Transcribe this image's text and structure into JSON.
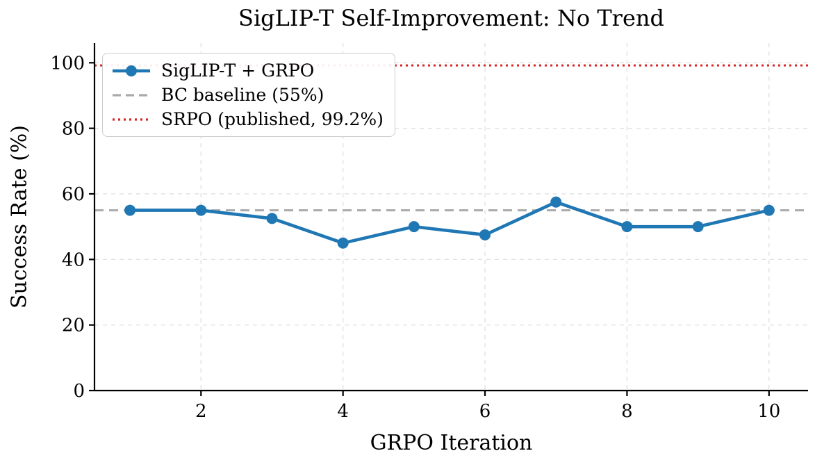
{
  "figure": {
    "background": "#ffffff"
  },
  "chart_data": {
    "type": "line",
    "title": "SigLIP-T Self-Improvement: No Trend",
    "xlabel": "GRPO Iteration",
    "ylabel": "Success Rate (%)",
    "xlim": [
      0.5,
      10.55
    ],
    "ylim": [
      0,
      106
    ],
    "xticks": [
      2,
      4,
      6,
      8,
      10
    ],
    "yticks": [
      0,
      20,
      40,
      60,
      80,
      100
    ],
    "grid": true,
    "grid_style": "dashed",
    "grid_color": "#e1e1e1",
    "legend_position": "upper left",
    "x": [
      1,
      2,
      3,
      4,
      5,
      6,
      7,
      8,
      9,
      10
    ],
    "series": [
      {
        "name": "SigLIP-T + GRPO",
        "style": "solid-with-circle-markers",
        "color": "#1f77b4",
        "values": [
          55,
          55,
          52.5,
          45,
          50,
          47.5,
          57.5,
          50,
          50,
          55
        ]
      }
    ],
    "reference_lines": [
      {
        "name": "BC baseline (55%)",
        "y": 55,
        "color": "#aaaaaa",
        "style": "dashed"
      },
      {
        "name": "SRPO (published, 99.2%)",
        "y": 99.2,
        "color": "#d62728",
        "style": "dotted"
      }
    ]
  }
}
